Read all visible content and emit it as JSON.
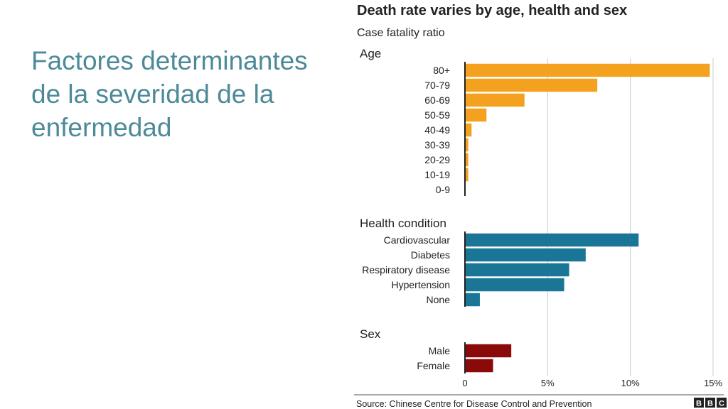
{
  "slide": {
    "title_lines": [
      "Factores determinantes",
      "de la severidad de la",
      "enfermedad"
    ]
  },
  "chart_data": {
    "type": "bar",
    "orientation": "horizontal",
    "title": "Death rate varies by age, health and sex",
    "subtitle": "Case fatality ratio",
    "xlim": [
      0,
      15
    ],
    "x_ticks": [
      "0",
      "5%",
      "10%",
      "15%"
    ],
    "x_tick_values": [
      0,
      5,
      10,
      15
    ],
    "grid": true,
    "groups": [
      {
        "name": "Age",
        "color": "#f3a11f",
        "categories": [
          "80+",
          "70-79",
          "60-69",
          "50-59",
          "40-49",
          "30-39",
          "20-29",
          "10-19",
          "0-9"
        ],
        "values": [
          14.8,
          8.0,
          3.6,
          1.3,
          0.4,
          0.2,
          0.2,
          0.2,
          0
        ]
      },
      {
        "name": "Health condition",
        "color": "#1a7596",
        "categories": [
          "Cardiovascular",
          "Diabetes",
          "Respiratory disease",
          "Hypertension",
          "None"
        ],
        "values": [
          10.5,
          7.3,
          6.3,
          6.0,
          0.9
        ]
      },
      {
        "name": "Sex",
        "color": "#8a0a0a",
        "categories": [
          "Male",
          "Female"
        ],
        "values": [
          2.8,
          1.7
        ]
      }
    ],
    "source": "Source: Chinese Centre for Disease Control and Prevention",
    "logo": [
      "B",
      "B",
      "C"
    ]
  }
}
